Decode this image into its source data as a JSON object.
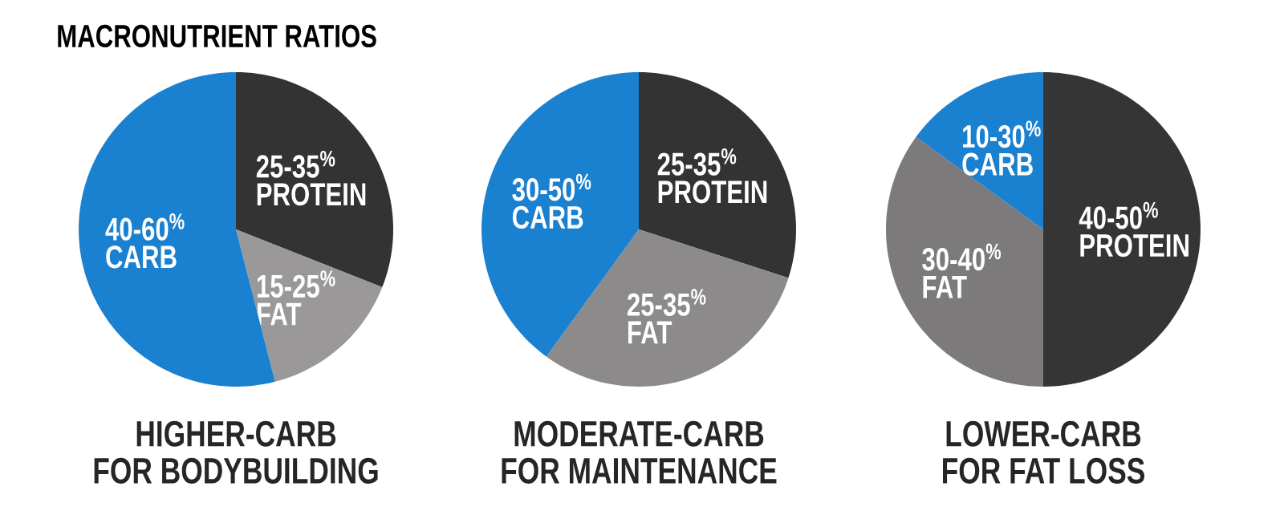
{
  "chart_data": [
    {
      "type": "pie",
      "title": "HIGHER-CARB",
      "subtitle": "FOR BODYBUILDING",
      "categories": [
        "PROTEIN",
        "FAT",
        "CARB"
      ],
      "values": [
        31,
        15,
        54
      ],
      "colors": [
        "#333333",
        "#9a9898",
        "#1a80d0"
      ],
      "annotations": [
        "MACRONUTRIENT RATIOS",
        {
          "text": "25-35$^{%}$",
          "x": "PROTEIN"
        },
        {
          "text": "15-25$^{%}$",
          "x": "FAT"
        },
        {
          "text": "40-60$^{%}$",
          "x": "CARB"
        }
      ]
    },
    {
      "type": "pie",
      "title": "MODERATE-CARB",
      "subtitle": "FOR MAINTENANCE",
      "categories": [
        "PROTEIN",
        "FAT",
        "CARB"
      ],
      "values": [
        30,
        30,
        40
      ],
      "colors": [
        "#333333",
        "#8c8a8a",
        "#1a80d0"
      ],
      "annotations": [
        {
          "text": "25-35$^{%}$",
          "x": "PROTEIN"
        },
        {
          "text": "25-35$^{%}$",
          "x": "FAT"
        },
        {
          "text": "30-50$^{%}$",
          "x": "CARB"
        }
      ]
    },
    {
      "type": "pie",
      "title": "LOWER-CARB",
      "subtitle": "FOR FAT LOSS",
      "categories": [
        "PROTEIN",
        "FAT",
        "CARB"
      ],
      "values": [
        50,
        35,
        15
      ],
      "colors": [
        "#353535",
        "#7c7a7a",
        "#1a80d0"
      ],
      "annotations": [
        {
          "text": "40-50$^{%}$",
          "x": "PROTEIN"
        },
        {
          "text": "30-40$^{%}$",
          "x": "FAT"
        },
        {
          "text": "10-30$^{%}$",
          "x": "CARB"
        }
      ]
    }
  ]
}
